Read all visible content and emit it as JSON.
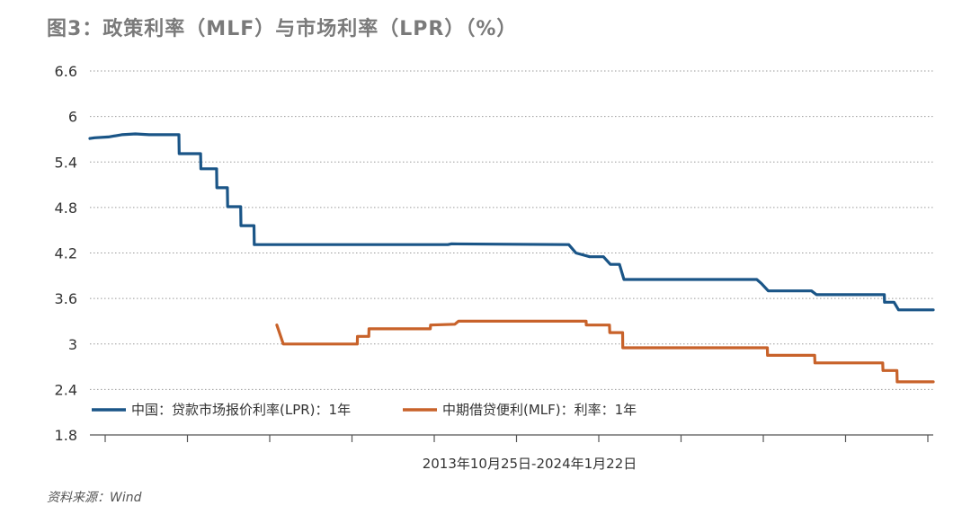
{
  "title": "图3：政策利率（MLF）与市场利率（LPR）（%）",
  "source": "资料来源：Wind",
  "chart_data": {
    "type": "line",
    "x_caption": "2013年10月25日-2024年1月22日",
    "x_range": [
      "2013-10-25",
      "2024-01-22"
    ],
    "ylim": [
      1.8,
      6.6
    ],
    "yticks": [
      "6.6",
      "6",
      "5.4",
      "4.8",
      "4.2",
      "3.6",
      "3",
      "2.4",
      "1.8"
    ],
    "grid": "horizontal dotted",
    "legend_position": "lower-left",
    "series": [
      {
        "name": "中国：贷款市场报价利率(LPR)：1年",
        "color": "#1a5587",
        "points": [
          [
            "2013-10-25",
            5.71
          ],
          [
            "2013-11-15",
            5.72
          ],
          [
            "2014-01-15",
            5.73
          ],
          [
            "2014-03-15",
            5.76
          ],
          [
            "2014-05-15",
            5.77
          ],
          [
            "2014-07-15",
            5.76
          ],
          [
            "2014-11-24",
            5.76
          ],
          [
            "2014-11-25",
            5.51
          ],
          [
            "2015-02-28",
            5.51
          ],
          [
            "2015-03-01",
            5.31
          ],
          [
            "2015-05-10",
            5.31
          ],
          [
            "2015-05-11",
            5.06
          ],
          [
            "2015-06-27",
            5.06
          ],
          [
            "2015-06-28",
            4.81
          ],
          [
            "2015-08-25",
            4.81
          ],
          [
            "2015-08-26",
            4.56
          ],
          [
            "2015-10-23",
            4.56
          ],
          [
            "2015-10-24",
            4.31
          ],
          [
            "2018-03-01",
            4.31
          ],
          [
            "2018-03-15",
            4.32
          ],
          [
            "2019-08-19",
            4.31
          ],
          [
            "2019-09-20",
            4.2
          ],
          [
            "2019-11-20",
            4.15
          ],
          [
            "2020-01-20",
            4.15
          ],
          [
            "2020-02-20",
            4.05
          ],
          [
            "2020-03-31",
            4.05
          ],
          [
            "2020-04-20",
            3.85
          ],
          [
            "2021-11-30",
            3.85
          ],
          [
            "2021-12-20",
            3.8
          ],
          [
            "2022-01-20",
            3.7
          ],
          [
            "2022-07-31",
            3.7
          ],
          [
            "2022-08-22",
            3.65
          ],
          [
            "2023-06-19",
            3.65
          ],
          [
            "2023-06-20",
            3.55
          ],
          [
            "2023-08-01",
            3.55
          ],
          [
            "2023-08-21",
            3.45
          ],
          [
            "2024-01-22",
            3.45
          ]
        ]
      },
      {
        "name": "中期借贷便利(MLF)：利率：1年",
        "color": "#c8622a",
        "points": [
          [
            "2016-02-01",
            3.25
          ],
          [
            "2016-03-01",
            3.0
          ],
          [
            "2017-01-23",
            3.0
          ],
          [
            "2017-01-24",
            3.1
          ],
          [
            "2017-03-15",
            3.1
          ],
          [
            "2017-03-16",
            3.2
          ],
          [
            "2017-12-13",
            3.2
          ],
          [
            "2017-12-14",
            3.25
          ],
          [
            "2018-04-01",
            3.26
          ],
          [
            "2018-04-17",
            3.3
          ],
          [
            "2019-11-04",
            3.3
          ],
          [
            "2019-11-05",
            3.25
          ],
          [
            "2020-02-16",
            3.25
          ],
          [
            "2020-02-17",
            3.15
          ],
          [
            "2020-04-14",
            3.15
          ],
          [
            "2020-04-15",
            2.95
          ],
          [
            "2022-01-16",
            2.95
          ],
          [
            "2022-01-17",
            2.85
          ],
          [
            "2022-08-14",
            2.85
          ],
          [
            "2022-08-15",
            2.75
          ],
          [
            "2023-06-12",
            2.75
          ],
          [
            "2023-06-13",
            2.65
          ],
          [
            "2023-08-14",
            2.65
          ],
          [
            "2023-08-15",
            2.5
          ],
          [
            "2024-01-22",
            2.5
          ]
        ]
      }
    ]
  }
}
